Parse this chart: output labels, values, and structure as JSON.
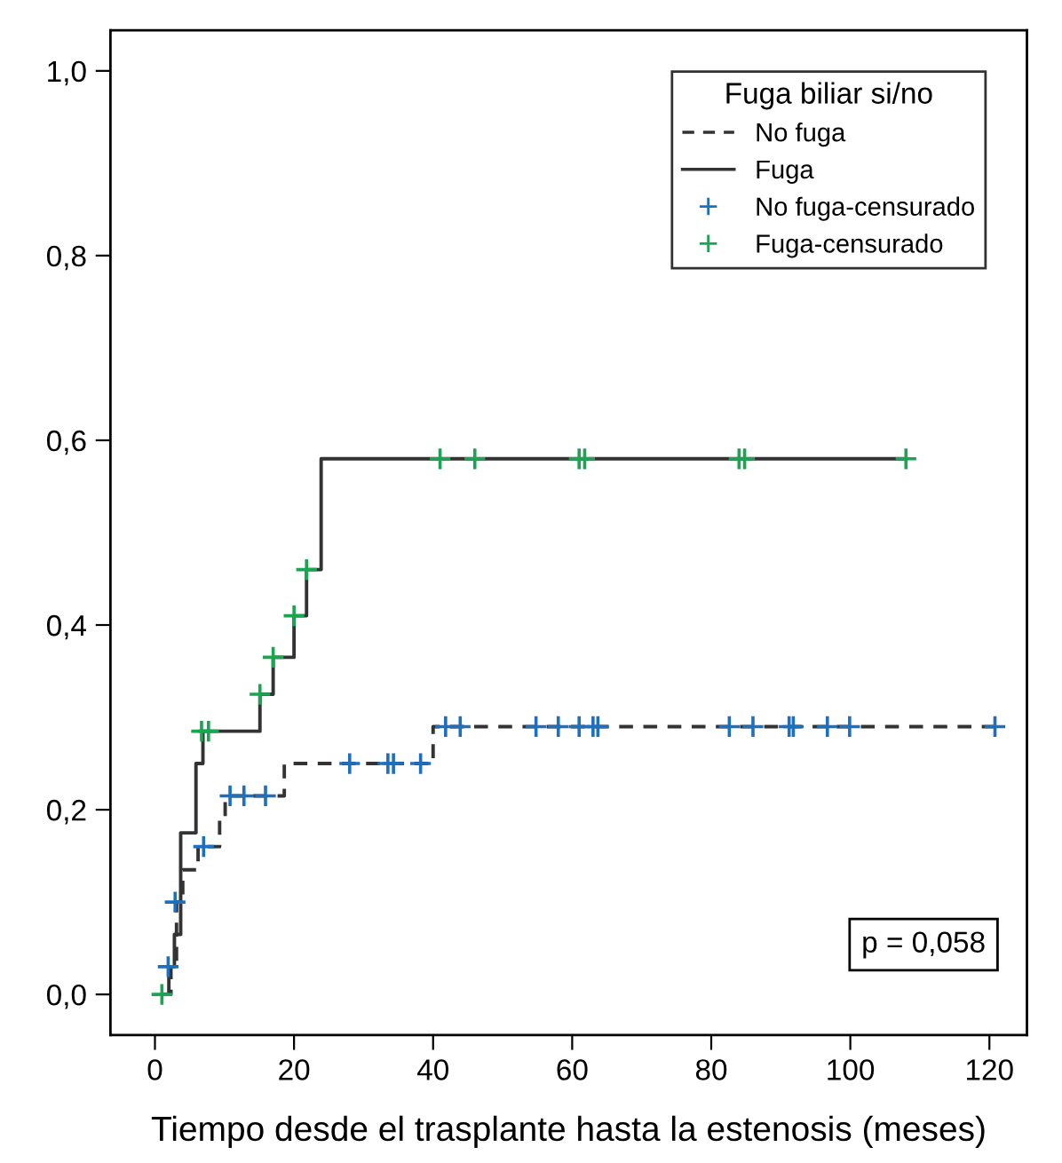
{
  "chart_data": {
    "type": "step",
    "xlabel": "Tiempo desde el trasplante hasta la estenosis (meses)",
    "legend_title": "Fuga biliar si/no",
    "legend": "top right",
    "grid": false,
    "xlim": [
      -6.4,
      125.4
    ],
    "ylim": [
      -0.044,
      1.044
    ],
    "xticks": [
      0,
      20,
      40,
      60,
      80,
      100,
      120
    ],
    "yticks": [
      {
        "value": 0.0,
        "label": "0,0"
      },
      {
        "value": 0.2,
        "label": "0,2"
      },
      {
        "value": 0.4,
        "label": "0,4"
      },
      {
        "value": 0.6,
        "label": "0,6"
      },
      {
        "value": 0.8,
        "label": "0,8"
      },
      {
        "value": 1.0,
        "label": "1,0"
      }
    ],
    "annotations": [
      "p = 0,058"
    ],
    "series": [
      {
        "name": "No fuga",
        "color": "#333333",
        "line_style": "dashed",
        "x": [
          1,
          2.3,
          3.1,
          4,
          6.2,
          9.3,
          10.1,
          18.6,
          40,
          121
        ],
        "values": [
          0,
          0.03,
          0.1,
          0.135,
          0.16,
          0.19,
          0.215,
          0.25,
          0.29,
          0.29
        ]
      },
      {
        "name": "Fuga",
        "color": "#333333",
        "line_style": "solid",
        "x": [
          1,
          2,
          2.8,
          3.7,
          5.9,
          6.9,
          15.1,
          17,
          20,
          21.8,
          23.9,
          108
        ],
        "values": [
          0,
          0.03,
          0.065,
          0.175,
          0.25,
          0.285,
          0.325,
          0.365,
          0.41,
          0.46,
          0.58,
          0.58
        ]
      },
      {
        "name": "No fuga-censurado",
        "type": "scatter",
        "marker": "cross",
        "color": "#1f6fbf",
        "x": [
          1.9,
          2.9,
          7,
          10.8,
          12.8,
          15.9,
          28,
          33.5,
          34.3,
          38.2,
          41.8,
          43.9,
          54.8,
          58,
          61,
          63,
          63.7,
          82.6,
          86,
          91.2,
          91.8,
          96.7,
          99.9,
          120.8
        ],
        "values": [
          0.03,
          0.1,
          0.16,
          0.215,
          0.215,
          0.215,
          0.25,
          0.25,
          0.25,
          0.25,
          0.29,
          0.29,
          0.29,
          0.29,
          0.29,
          0.29,
          0.29,
          0.29,
          0.29,
          0.29,
          0.29,
          0.29,
          0.29,
          0.29
        ]
      },
      {
        "name": "Fuga-censurado",
        "type": "scatter",
        "marker": "cross",
        "color": "#1aa551",
        "x": [
          1,
          6.7,
          7.7,
          15.1,
          17,
          20,
          21.8,
          41,
          46,
          61,
          61.8,
          84,
          84.8,
          108
        ],
        "values": [
          0,
          0.285,
          0.285,
          0.325,
          0.365,
          0.41,
          0.46,
          0.58,
          0.58,
          0.58,
          0.58,
          0.58,
          0.58,
          0.58
        ]
      }
    ]
  }
}
